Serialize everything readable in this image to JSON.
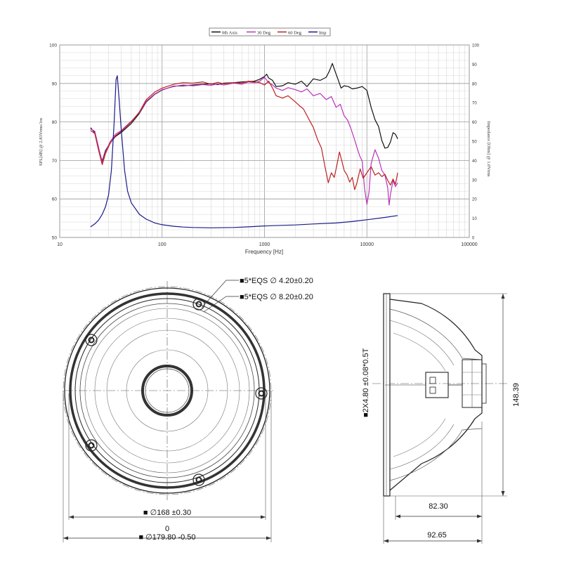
{
  "chart_data": {
    "type": "line",
    "title": "",
    "xlabel": "Frequency [Hz]",
    "ylabel": "SPL[dB] @ 2.83Vrms/1m",
    "y2label": "Impedance [Ohm] @ 1.0Vrms",
    "xscale": "log",
    "xlim": [
      10,
      100000
    ],
    "ylim": [
      50,
      100
    ],
    "y2lim": [
      0,
      100
    ],
    "x_ticks": [
      "10",
      "100",
      "1000",
      "10000",
      "100000"
    ],
    "y_ticks": [
      "50",
      "60",
      "70",
      "80",
      "90",
      "100"
    ],
    "y2_ticks": [
      "0",
      "10",
      "20",
      "30",
      "40",
      "50",
      "60",
      "70",
      "80",
      "90",
      "100"
    ],
    "grid": true,
    "legend_position": "top",
    "series": [
      {
        "name": "0th Axis",
        "color": "#111111",
        "axis": "left",
        "points": [
          [
            20,
            78.5
          ],
          [
            22,
            77.2
          ],
          [
            24,
            73
          ],
          [
            26,
            69.8
          ],
          [
            28,
            72.6
          ],
          [
            31,
            74.5
          ],
          [
            35,
            76.2
          ],
          [
            40,
            77.3
          ],
          [
            50,
            79.6
          ],
          [
            60,
            82.2
          ],
          [
            70,
            85.2
          ],
          [
            85,
            87.2
          ],
          [
            100,
            88.3
          ],
          [
            130,
            89.3
          ],
          [
            160,
            89.4
          ],
          [
            200,
            89.6
          ],
          [
            250,
            89.8
          ],
          [
            300,
            89.9
          ],
          [
            350,
            89.7
          ],
          [
            400,
            90.1
          ],
          [
            500,
            90.2
          ],
          [
            600,
            90.4
          ],
          [
            700,
            90.5
          ],
          [
            800,
            90.6
          ],
          [
            900,
            91.1
          ],
          [
            1000,
            91.8
          ],
          [
            1050,
            92.4
          ],
          [
            1100,
            91.4
          ],
          [
            1200,
            90.8
          ],
          [
            1300,
            89.2
          ],
          [
            1500,
            89.4
          ],
          [
            1700,
            90.2
          ],
          [
            2000,
            89.8
          ],
          [
            2300,
            90.6
          ],
          [
            2600,
            89.2
          ],
          [
            3000,
            91.2
          ],
          [
            3500,
            90.8
          ],
          [
            4000,
            91.6
          ],
          [
            4300,
            93.2
          ],
          [
            4600,
            95.2
          ],
          [
            4900,
            93.1
          ],
          [
            5200,
            91.2
          ],
          [
            5600,
            88.8
          ],
          [
            6000,
            89.4
          ],
          [
            6600,
            89.2
          ],
          [
            7200,
            88.6
          ],
          [
            8000,
            88.8
          ],
          [
            9000,
            89.2
          ],
          [
            10000,
            88.2
          ],
          [
            11000,
            83.8
          ],
          [
            12000,
            80.6
          ],
          [
            13000,
            78.8
          ],
          [
            14000,
            75.2
          ],
          [
            15000,
            73.2
          ],
          [
            16000,
            73.4
          ],
          [
            17000,
            74.8
          ],
          [
            18000,
            77.2
          ],
          [
            19000,
            76.8
          ],
          [
            20000,
            75.6
          ]
        ]
      },
      {
        "name": "30 Deg",
        "color": "#bb33bb",
        "axis": "left",
        "points": [
          [
            20,
            78.2
          ],
          [
            22,
            77.6
          ],
          [
            24,
            73.4
          ],
          [
            26,
            69.4
          ],
          [
            28,
            72.2
          ],
          [
            31,
            74.8
          ],
          [
            35,
            76.8
          ],
          [
            40,
            77.8
          ],
          [
            50,
            80.2
          ],
          [
            60,
            82.4
          ],
          [
            70,
            85.4
          ],
          [
            85,
            87.3
          ],
          [
            100,
            88.4
          ],
          [
            130,
            89.2
          ],
          [
            160,
            89.6
          ],
          [
            200,
            89.4
          ],
          [
            250,
            89.7
          ],
          [
            300,
            89.5
          ],
          [
            350,
            89.9
          ],
          [
            400,
            89.6
          ],
          [
            500,
            90.1
          ],
          [
            600,
            89.8
          ],
          [
            700,
            90.4
          ],
          [
            800,
            90.2
          ],
          [
            900,
            90.6
          ],
          [
            1000,
            91.6
          ],
          [
            1100,
            90.2
          ],
          [
            1200,
            89.6
          ],
          [
            1300,
            88.8
          ],
          [
            1500,
            88.2
          ],
          [
            1700,
            88.9
          ],
          [
            2000,
            88.4
          ],
          [
            2300,
            87.8
          ],
          [
            2600,
            88.6
          ],
          [
            3000,
            86.8
          ],
          [
            3500,
            87.4
          ],
          [
            4000,
            85.8
          ],
          [
            4500,
            86.6
          ],
          [
            5000,
            83.8
          ],
          [
            5500,
            84.6
          ],
          [
            6000,
            81.6
          ],
          [
            6500,
            80.4
          ],
          [
            7000,
            78.2
          ],
          [
            7500,
            75.8
          ],
          [
            8000,
            73.4
          ],
          [
            8500,
            71.2
          ],
          [
            9000,
            69.8
          ],
          [
            9500,
            62.6
          ],
          [
            10000,
            58.6
          ],
          [
            10500,
            61.8
          ],
          [
            11000,
            69.2
          ],
          [
            12000,
            72.8
          ],
          [
            13000,
            70.6
          ],
          [
            14000,
            67.4
          ],
          [
            15000,
            66.2
          ],
          [
            16000,
            62.8
          ],
          [
            16500,
            58.4
          ],
          [
            17000,
            61.2
          ],
          [
            18000,
            64.8
          ],
          [
            19000,
            63.2
          ],
          [
            20000,
            64.2
          ]
        ]
      },
      {
        "name": "60 Deg",
        "color": "#bb2222",
        "axis": "left",
        "points": [
          [
            20,
            77.8
          ],
          [
            22,
            77.0
          ],
          [
            24,
            72.6
          ],
          [
            26,
            68.9
          ],
          [
            28,
            71.8
          ],
          [
            31,
            74.4
          ],
          [
            35,
            76.4
          ],
          [
            40,
            77.6
          ],
          [
            50,
            80.0
          ],
          [
            60,
            82.6
          ],
          [
            70,
            85.8
          ],
          [
            85,
            87.8
          ],
          [
            100,
            88.8
          ],
          [
            130,
            89.8
          ],
          [
            160,
            90.2
          ],
          [
            200,
            90.1
          ],
          [
            250,
            90.4
          ],
          [
            300,
            89.8
          ],
          [
            350,
            90.3
          ],
          [
            400,
            89.9
          ],
          [
            500,
            90.2
          ],
          [
            600,
            90.1
          ],
          [
            700,
            90.6
          ],
          [
            800,
            90.4
          ],
          [
            900,
            90.2
          ],
          [
            1000,
            89.6
          ],
          [
            1100,
            90.6
          ],
          [
            1200,
            88.8
          ],
          [
            1300,
            86.8
          ],
          [
            1500,
            86.2
          ],
          [
            1700,
            86.8
          ],
          [
            2000,
            85.2
          ],
          [
            2200,
            84.2
          ],
          [
            2400,
            83.4
          ],
          [
            2700,
            80.8
          ],
          [
            3000,
            78.6
          ],
          [
            3300,
            75.4
          ],
          [
            3600,
            73.2
          ],
          [
            3900,
            68.4
          ],
          [
            4200,
            64.2
          ],
          [
            4500,
            66.8
          ],
          [
            4800,
            65.6
          ],
          [
            5100,
            68.8
          ],
          [
            5400,
            72.2
          ],
          [
            5700,
            69.8
          ],
          [
            6000,
            67.4
          ],
          [
            6400,
            66.2
          ],
          [
            6800,
            64.4
          ],
          [
            7200,
            65.6
          ],
          [
            7600,
            62.4
          ],
          [
            8000,
            64.2
          ],
          [
            8600,
            67.8
          ],
          [
            9200,
            65.4
          ],
          [
            10000,
            66.8
          ],
          [
            11000,
            68.4
          ],
          [
            12000,
            66.2
          ],
          [
            13000,
            66.8
          ],
          [
            14000,
            65.8
          ],
          [
            15000,
            66.4
          ],
          [
            16000,
            64.8
          ],
          [
            17000,
            63.6
          ],
          [
            18000,
            65.2
          ],
          [
            19000,
            63.8
          ],
          [
            20000,
            66.8
          ]
        ]
      },
      {
        "name": "Imp",
        "color": "#1a1a8a",
        "axis": "right",
        "points": [
          [
            20,
            5.5
          ],
          [
            22,
            7
          ],
          [
            24,
            9
          ],
          [
            26,
            12
          ],
          [
            28,
            16
          ],
          [
            30,
            22
          ],
          [
            32,
            35
          ],
          [
            34,
            60
          ],
          [
            35.5,
            82
          ],
          [
            36.5,
            84
          ],
          [
            38,
            72
          ],
          [
            40,
            55
          ],
          [
            43,
            35
          ],
          [
            46,
            24
          ],
          [
            50,
            18
          ],
          [
            60,
            12
          ],
          [
            70,
            9.5
          ],
          [
            85,
            7.5
          ],
          [
            100,
            6.6
          ],
          [
            130,
            5.8
          ],
          [
            160,
            5.4
          ],
          [
            200,
            5.2
          ],
          [
            300,
            5.0
          ],
          [
            500,
            5.2
          ],
          [
            700,
            5.5
          ],
          [
            1000,
            6.0
          ],
          [
            2000,
            6.5
          ],
          [
            3000,
            7
          ],
          [
            5000,
            7.5
          ],
          [
            7000,
            8.2
          ],
          [
            10000,
            9.2
          ],
          [
            15000,
            10.4
          ],
          [
            20000,
            11.4
          ]
        ]
      }
    ]
  },
  "drawing": {
    "front_view": {
      "hole_callout_1": "■5*EQS ∅ 4.20±0.20",
      "hole_callout_2": "■5*EQS ∅ 8.20±0.20",
      "dim_bolt_circle": "■ ∅168 ±0.30",
      "dim_outer_top": "0",
      "dim_outer_bottom": "■ ∅179.80 -0.50"
    },
    "side_view": {
      "terminal_dim": "■2X4.80 ±0.08*0.5T",
      "height_dim": "148.39",
      "depth_dim_1": "82.30",
      "depth_dim_2": "92.65"
    }
  }
}
